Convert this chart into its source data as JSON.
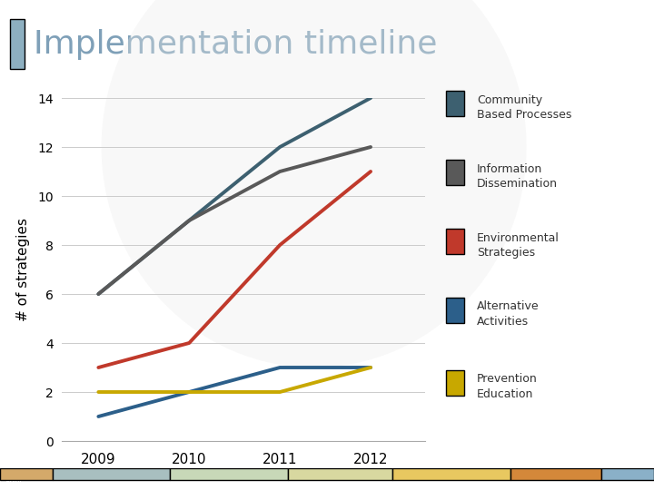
{
  "title": "Implementation timeline",
  "title_color": "#7fa0b8",
  "title_fontsize": 26,
  "ylabel": "# of strategies",
  "ylabel_fontsize": 11,
  "background_color": "#ffffff",
  "plot_bg_color": "#ffffff",
  "years": [
    2009,
    2010,
    2011,
    2012
  ],
  "series": [
    {
      "label": "Community\nBased Processes",
      "color": "#3d6070",
      "values": [
        6,
        9,
        12,
        14
      ],
      "linewidth": 2.8
    },
    {
      "label": "Information\nDissemination",
      "color": "#595959",
      "values": [
        6,
        9,
        11,
        12
      ],
      "linewidth": 2.8
    },
    {
      "label": "Environmental\nStrategies",
      "color": "#c0392b",
      "values": [
        3,
        4,
        8,
        11
      ],
      "linewidth": 2.8
    },
    {
      "label": "Alternative\nActivities",
      "color": "#2c5f8a",
      "values": [
        1,
        2,
        3,
        3
      ],
      "linewidth": 2.8
    },
    {
      "label": "Prevention\nEducation",
      "color": "#c8a800",
      "values": [
        2,
        2,
        2,
        3
      ],
      "linewidth": 2.8
    }
  ],
  "ylim": [
    0,
    14
  ],
  "yticks": [
    0,
    2,
    4,
    6,
    8,
    10,
    12,
    14
  ],
  "title_bar_color": "#8dafc0",
  "grid_color": "#cccccc",
  "watermark_color": "#ebebeb",
  "bottom_colors": [
    "#d4a96a",
    "#a8bfc0",
    "#c8d8b8",
    "#d8d8a0",
    "#e8c860",
    "#d4883a",
    "#8ab0c8"
  ],
  "bottom_widths": [
    0.08,
    0.18,
    0.18,
    0.16,
    0.18,
    0.14,
    0.08
  ],
  "dark_bg": "#2d2d2d"
}
